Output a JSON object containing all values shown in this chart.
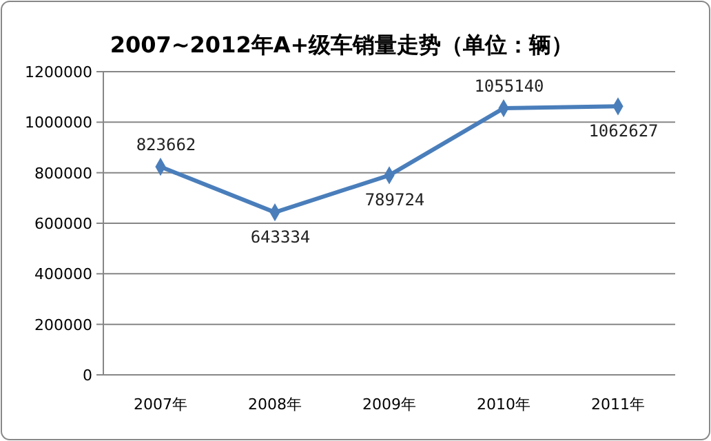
{
  "chart_data": {
    "type": "line",
    "title": "2007~2012年A+级车销量走势（单位：辆）",
    "categories": [
      "2007年",
      "2008年",
      "2009年",
      "2010年",
      "2011年"
    ],
    "series": [
      {
        "color": "#4a7ebb",
        "values": [
          823662,
          643334,
          789724,
          1055140,
          1062627
        ]
      }
    ],
    "ylim": [
      0,
      1200000
    ],
    "yticks": [
      0,
      200000,
      400000,
      600000,
      800000,
      1000000,
      1200000
    ],
    "grid": "y",
    "marker": "diamond",
    "line_style": "solid",
    "data_labels": true
  }
}
